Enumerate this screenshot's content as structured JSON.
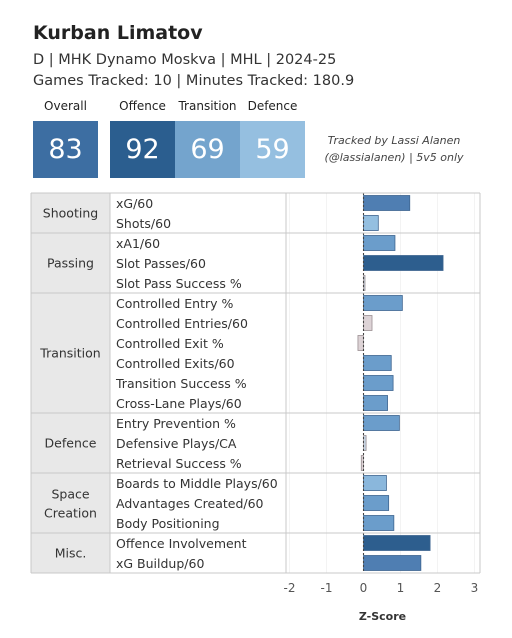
{
  "header": {
    "player_name": "Kurban Limatov",
    "subtitle": "D | MHK Dynamo Moskva | MHL | 2024-25",
    "tracking": "Games Tracked: 10 | Minutes Tracked: 180.9"
  },
  "tiles": [
    {
      "label": "Overall",
      "value": "83",
      "color": "#3d6ea2"
    },
    {
      "label": "Offence",
      "value": "92",
      "color": "#2b5e8f"
    },
    {
      "label": "Transition",
      "value": "69",
      "color": "#74a4cd"
    },
    {
      "label": "Defence",
      "value": "59",
      "color": "#95bfe0"
    }
  ],
  "credit": {
    "line1": "Tracked by Lassi Alanen",
    "line2": "(@lassialanen) | 5v5 only"
  },
  "chart_data": {
    "type": "bar",
    "orientation": "horizontal",
    "xlabel": "Z-Score",
    "xlim": [
      -2.2,
      3.15
    ],
    "xticks": [
      -2,
      -1,
      0,
      1,
      2,
      3
    ],
    "groups": [
      {
        "name": "Shooting",
        "metrics": [
          {
            "label": "xG/60",
            "value": 1.25,
            "color": "#4f7eb2"
          },
          {
            "label": "Shots/60",
            "value": 0.4,
            "color": "#94bfe0"
          }
        ]
      },
      {
        "name": "Passing",
        "metrics": [
          {
            "label": "xA1/60",
            "value": 0.85,
            "color": "#6b9dcb"
          },
          {
            "label": "Slot Passes/60",
            "value": 2.15,
            "color": "#2d5e8e"
          },
          {
            "label": "Slot Pass Success %",
            "value": 0.03,
            "color": "#c7d5e4"
          }
        ]
      },
      {
        "name": "Transition",
        "metrics": [
          {
            "label": "Controlled Entry %",
            "value": 1.05,
            "color": "#6b9dcb"
          },
          {
            "label": "Controlled Entries/60",
            "value": 0.23,
            "color": "#ddd3d6"
          },
          {
            "label": "Controlled Exit %",
            "value": -0.15,
            "color": "#ddd3d6"
          },
          {
            "label": "Controlled Exits/60",
            "value": 0.75,
            "color": "#6b9dcb"
          },
          {
            "label": "Transition Success %",
            "value": 0.8,
            "color": "#6b9dcb"
          },
          {
            "label": "Cross-Lane Plays/60",
            "value": 0.65,
            "color": "#6b9dcb"
          }
        ]
      },
      {
        "name": "Defence",
        "metrics": [
          {
            "label": "Entry Prevention %",
            "value": 0.97,
            "color": "#6b9dcb"
          },
          {
            "label": "Defensive Plays/CA",
            "value": 0.07,
            "color": "#c7d5e4"
          },
          {
            "label": "Retrieval Success %",
            "value": -0.06,
            "color": "#ddd3d6"
          }
        ]
      },
      {
        "name": "Space Creation",
        "metrics": [
          {
            "label": "Boards to Middle Plays/60",
            "value": 0.62,
            "color": "#8ab7dc"
          },
          {
            "label": "Advantages Created/60",
            "value": 0.68,
            "color": "#6b9dcb"
          },
          {
            "label": "Body Positioning",
            "value": 0.82,
            "color": "#6b9dcb"
          }
        ]
      },
      {
        "name": "Misc.",
        "metrics": [
          {
            "label": "Offence Involvement",
            "value": 1.8,
            "color": "#2d5e8e"
          },
          {
            "label": "xG Buildup/60",
            "value": 1.55,
            "color": "#4f7eb2"
          }
        ]
      }
    ]
  }
}
